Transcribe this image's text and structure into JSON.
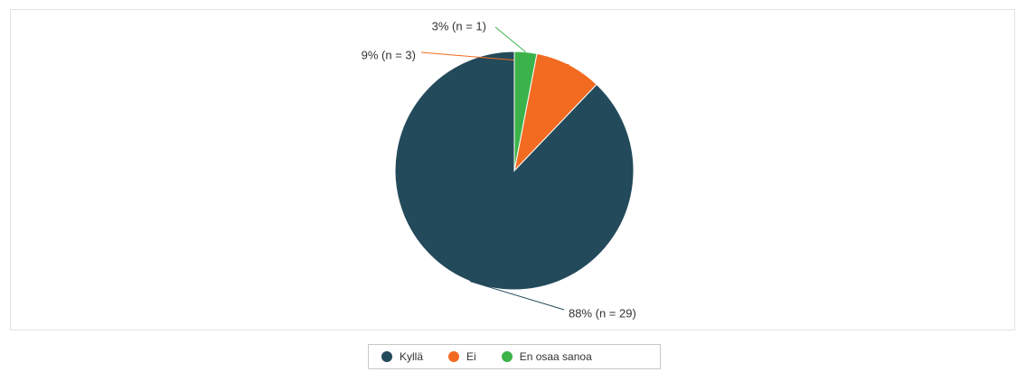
{
  "chart_data": {
    "type": "pie",
    "categories": [
      "Kyllä",
      "Ei",
      "En osaa sanoa"
    ],
    "values": [
      29,
      3,
      1
    ],
    "percentages": [
      88,
      9,
      3
    ],
    "labels": [
      "88% (n = 29)",
      "9% (n = 3)",
      "3% (n = 1)"
    ],
    "colors": [
      "#234a5b",
      "#f26b21",
      "#3bb34a"
    ],
    "start_angle_deg": 0,
    "direction": "counterclockwise",
    "legend_position": "bottom"
  }
}
